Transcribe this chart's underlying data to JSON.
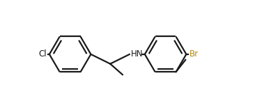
{
  "bg_color": "#ffffff",
  "line_color": "#1a1a1a",
  "br_color": "#b8860b",
  "hn_color": "#1a1a1a",
  "line_width": 1.6,
  "font_size": 8.5,
  "label_Cl": "Cl",
  "label_Br": "Br",
  "label_HN": "HN",
  "figw": 3.66,
  "figh": 1.45,
  "dpi": 100
}
